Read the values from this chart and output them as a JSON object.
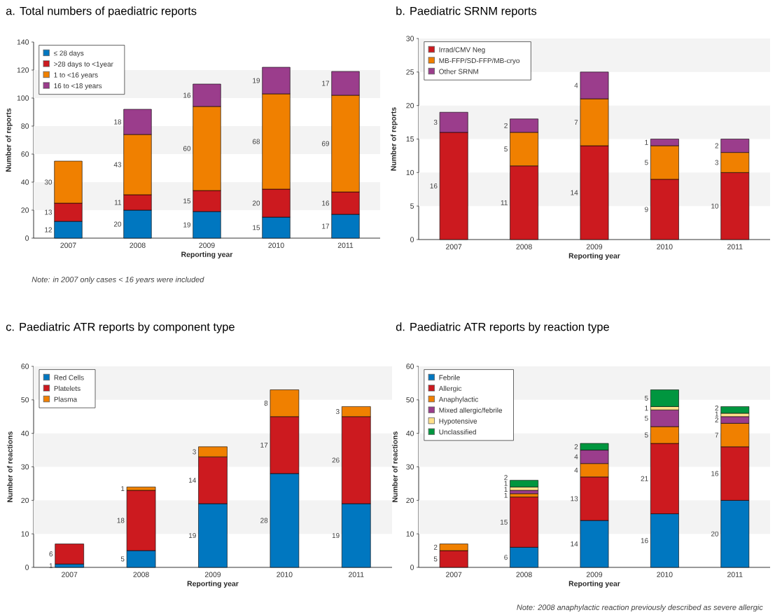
{
  "chart_data": [
    {
      "type": "bar",
      "title": "a.  Total numbers of paediatric reports",
      "xlabel": "Reporting year",
      "ylabel": "Number of reports",
      "categories": [
        "2007",
        "2008",
        "2009",
        "2010",
        "2011"
      ],
      "stacked": true,
      "data_labels": true,
      "legend": "top left",
      "ylim": [
        0,
        140
      ],
      "yticks": [
        0,
        20,
        40,
        60,
        80,
        100,
        120,
        140
      ],
      "series": [
        {
          "name": "≤ 28 days",
          "color": "#0077c0",
          "values": [
            12,
            20,
            19,
            15,
            17
          ]
        },
        {
          "name": ">28 days to <1year",
          "color": "#cc1a1f",
          "values": [
            13,
            11,
            15,
            20,
            16
          ]
        },
        {
          "name": "1 to <16 years",
          "color": "#f08000",
          "values": [
            30,
            43,
            60,
            68,
            69
          ]
        },
        {
          "name": "16 to <18 years",
          "color": "#9b3d8c",
          "values": [
            null,
            18,
            16,
            19,
            17
          ]
        }
      ],
      "bands": [
        {
          "axis": "y",
          "from": 20,
          "to": 40,
          "color": "#f3f3f3"
        },
        {
          "axis": "y",
          "from": 60,
          "to": 80,
          "color": "#f3f3f3"
        },
        {
          "axis": "y",
          "from": 100,
          "to": 120,
          "color": "#f3f3f3"
        }
      ],
      "annotations": [
        "Note: in 2007 only cases < 16 years were included"
      ]
    },
    {
      "type": "bar",
      "title": "b.  Paediatric SRNM reports",
      "xlabel": "Reporting year",
      "ylabel": "Number of reports",
      "categories": [
        "2007",
        "2008",
        "2009",
        "2010",
        "2011"
      ],
      "stacked": true,
      "data_labels": true,
      "legend": "top left",
      "ylim": [
        0,
        30
      ],
      "yticks": [
        0,
        5,
        10,
        15,
        20,
        25,
        30
      ],
      "series": [
        {
          "name": "Irrad/CMV Neg",
          "color": "#cc1a1f",
          "values": [
            16,
            11,
            14,
            9,
            10
          ]
        },
        {
          "name": "MB-FFP/SD-FFP/MB-cryo",
          "color": "#f08000",
          "values": [
            null,
            5,
            7,
            5,
            3
          ]
        },
        {
          "name": "Other SRNM",
          "color": "#9b3d8c",
          "values": [
            3,
            2,
            4,
            1,
            2
          ]
        }
      ],
      "bands": [
        {
          "axis": "y",
          "from": 5,
          "to": 10,
          "color": "#f3f3f3"
        },
        {
          "axis": "y",
          "from": 15,
          "to": 20,
          "color": "#f3f3f3"
        },
        {
          "axis": "y",
          "from": 25,
          "to": 30,
          "color": "#f3f3f3"
        }
      ]
    },
    {
      "type": "bar",
      "title": "c.  Paediatric ATR reports by component type",
      "xlabel": "Reporting year",
      "ylabel": "Number of reactions",
      "categories": [
        "2007",
        "2008",
        "2009",
        "2010",
        "2011"
      ],
      "stacked": true,
      "data_labels": true,
      "legend": "top left",
      "ylim": [
        0,
        60
      ],
      "yticks": [
        0,
        10,
        20,
        30,
        40,
        50,
        60
      ],
      "series": [
        {
          "name": "Red Cells",
          "color": "#0077c0",
          "values": [
            1,
            5,
            19,
            28,
            19
          ]
        },
        {
          "name": "Platelets",
          "color": "#cc1a1f",
          "values": [
            6,
            18,
            14,
            17,
            26
          ]
        },
        {
          "name": "Plasma",
          "color": "#f08000",
          "values": [
            null,
            1,
            3,
            8,
            3
          ]
        }
      ],
      "bands": [
        {
          "axis": "y",
          "from": 10,
          "to": 20,
          "color": "#f3f3f3"
        },
        {
          "axis": "y",
          "from": 30,
          "to": 40,
          "color": "#f3f3f3"
        },
        {
          "axis": "y",
          "from": 50,
          "to": 60,
          "color": "#f3f3f3"
        }
      ]
    },
    {
      "type": "bar",
      "title": "d.  Paediatric ATR reports by reaction type",
      "xlabel": "Reporting year",
      "ylabel": "Number of reactions",
      "categories": [
        "2007",
        "2008",
        "2009",
        "2010",
        "2011"
      ],
      "stacked": true,
      "data_labels": true,
      "legend": "top left",
      "ylim": [
        0,
        60
      ],
      "yticks": [
        0,
        10,
        20,
        30,
        40,
        50,
        60
      ],
      "series": [
        {
          "name": "Febrile",
          "color": "#0077c0",
          "values": [
            null,
            6,
            14,
            16,
            20
          ]
        },
        {
          "name": "Allergic",
          "color": "#cc1a1f",
          "values": [
            5,
            15,
            13,
            21,
            16
          ]
        },
        {
          "name": "Anaphylactic",
          "color": "#f08000",
          "values": [
            2,
            1,
            4,
            5,
            7
          ]
        },
        {
          "name": "Mixed allergic/febrile",
          "color": "#9b3d8c",
          "values": [
            null,
            1,
            4,
            5,
            2
          ]
        },
        {
          "name": "Hypotensive",
          "color": "#ffe08a",
          "values": [
            null,
            1,
            null,
            1,
            1
          ]
        },
        {
          "name": "Unclassified",
          "color": "#00963f",
          "values": [
            null,
            2,
            2,
            5,
            2
          ]
        }
      ],
      "bands": [
        {
          "axis": "y",
          "from": 10,
          "to": 20,
          "color": "#f3f3f3"
        },
        {
          "axis": "y",
          "from": 30,
          "to": 40,
          "color": "#f3f3f3"
        },
        {
          "axis": "y",
          "from": 50,
          "to": 60,
          "color": "#f3f3f3"
        }
      ],
      "annotations": [
        "Note: 2008 anaphylactic reaction previously described as severe allergic"
      ]
    }
  ]
}
